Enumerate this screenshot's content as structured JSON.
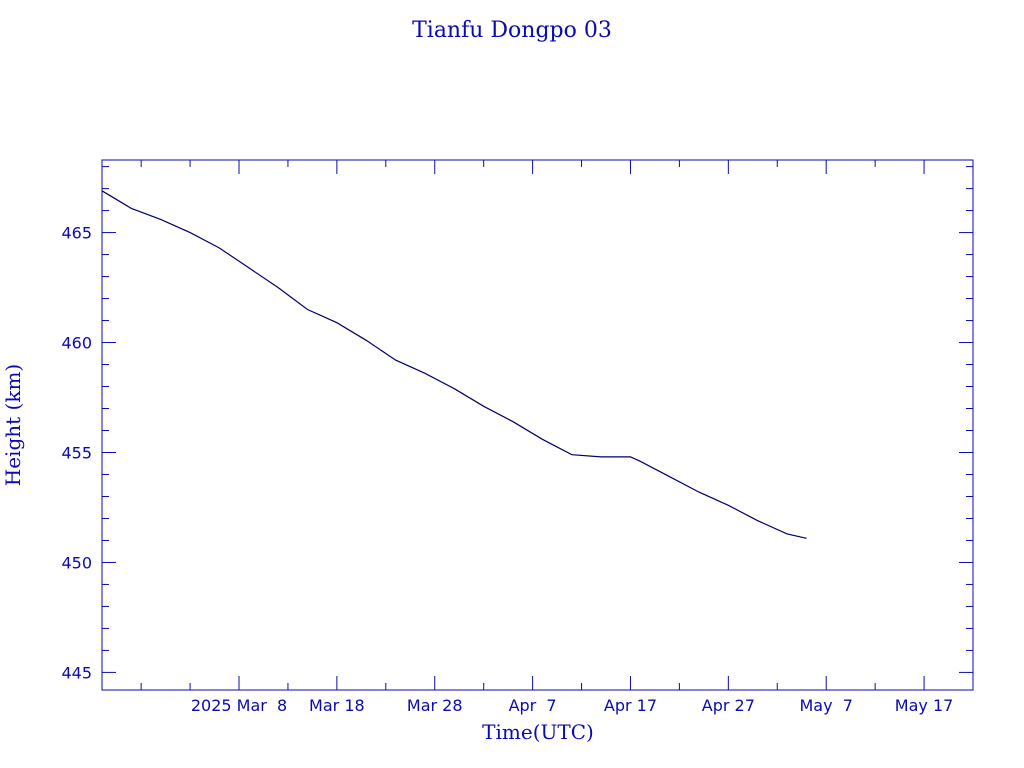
{
  "chart_data": {
    "type": "line",
    "title": "Tianfu Dongpo 03",
    "xlabel": "Time(UTC)",
    "ylabel": "Height (km)",
    "xlim": [
      "2025-02-22",
      "2025-05-22"
    ],
    "ylim": [
      444.2,
      468.3
    ],
    "x_tick_labels": [
      "2025 Mar  8",
      "Mar 18",
      "Mar 28",
      "Apr  7",
      "Apr 17",
      "Apr 27",
      "May  7",
      "May 17"
    ],
    "x_tick_dates": [
      "2025-03-08",
      "2025-03-18",
      "2025-03-28",
      "2025-04-07",
      "2025-04-17",
      "2025-04-27",
      "2025-05-07",
      "2025-05-17"
    ],
    "y_ticks": [
      445,
      450,
      455,
      460,
      465
    ],
    "colors": {
      "axis": "#0a0ab0",
      "line": "#00006e",
      "text": "#0a0ab0"
    },
    "series": [
      {
        "x": [
          "2025-02-22",
          "2025-02-25",
          "2025-02-28",
          "2025-03-03",
          "2025-03-06",
          "2025-03-09",
          "2025-03-12",
          "2025-03-15",
          "2025-03-18",
          "2025-03-21",
          "2025-03-24",
          "2025-03-27",
          "2025-03-30",
          "2025-04-02",
          "2025-04-05",
          "2025-04-08",
          "2025-04-11",
          "2025-04-14",
          "2025-04-17",
          "2025-04-18",
          "2025-04-21",
          "2025-04-24",
          "2025-04-27",
          "2025-04-30",
          "2025-05-03",
          "2025-05-05"
        ],
        "y": [
          466.9,
          466.1,
          465.6,
          465.0,
          464.3,
          463.4,
          462.5,
          461.5,
          460.9,
          460.1,
          459.2,
          458.6,
          457.9,
          457.1,
          456.4,
          455.6,
          454.9,
          454.8,
          454.8,
          454.6,
          453.9,
          453.2,
          452.6,
          451.9,
          451.3,
          451.1
        ]
      }
    ]
  }
}
